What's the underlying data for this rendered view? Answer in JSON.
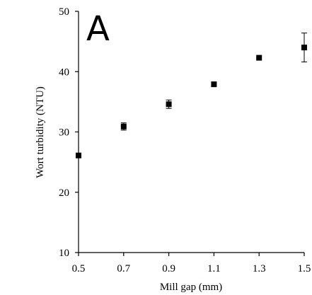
{
  "chart_data": {
    "type": "scatter",
    "panel_label": "A",
    "title": "",
    "xlabel": "Mill gap (mm)",
    "ylabel": "Wort turbidity (NTU)",
    "xlim": [
      0.5,
      1.5
    ],
    "ylim": [
      10,
      50
    ],
    "xticks": [
      "0.5",
      "0.7",
      "0.9",
      "1.1",
      "1.3",
      "1.5"
    ],
    "yticks": [
      "10",
      "20",
      "30",
      "40",
      "50"
    ],
    "grid": false,
    "legend": "none",
    "marker": "square",
    "color": "#000000",
    "series": [
      {
        "x": [
          0.5,
          0.7,
          0.9,
          1.1,
          1.3,
          1.5
        ],
        "y": [
          26.1,
          30.9,
          34.6,
          37.9,
          42.3,
          44.0
        ],
        "error": [
          0.0,
          0.6,
          0.7,
          0.0,
          0.0,
          2.4
        ]
      }
    ]
  }
}
